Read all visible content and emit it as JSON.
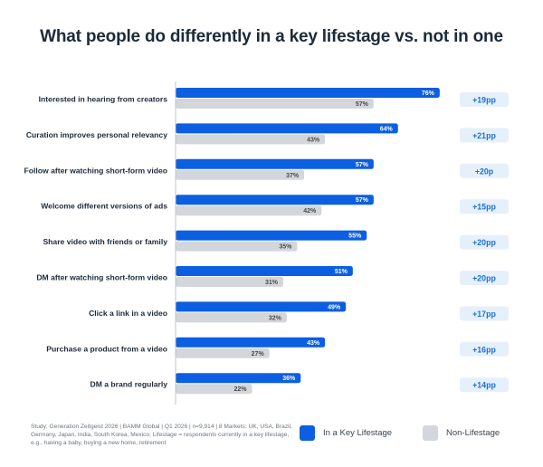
{
  "title": "What people do differently in a key lifestage vs. not in one",
  "colors": {
    "lifestage": "#0b5fe0",
    "non_lifestage": "#d3d6da",
    "diff_bg": "#e6f0fb",
    "diff_text": "#1c6fd1",
    "axis": "#bfc4c9"
  },
  "chart_data": {
    "type": "bar",
    "orientation": "horizontal",
    "title": "What people do differently in a key lifestage vs. not in one",
    "categories": [
      "Interested in hearing from creators",
      "Curation improves personal relevancy",
      "Follow after watching short-form video",
      "Welcome different versions of ads",
      "Share video with friends or family",
      "DM after watching short-form video",
      "Click a link in a video",
      "Purchase a product from a video",
      "DM a brand regularly"
    ],
    "series": [
      {
        "name": "In a Key Lifestage",
        "values": [
          76,
          64,
          57,
          57,
          55,
          51,
          49,
          43,
          36
        ]
      },
      {
        "name": "Non-Lifestage",
        "values": [
          57,
          43,
          37,
          42,
          35,
          31,
          32,
          27,
          22
        ]
      }
    ],
    "value_labels": {
      "lifestage": [
        "76%",
        "64%",
        "57%",
        "57%",
        "55%",
        "51%",
        "49%",
        "43%",
        "36%"
      ],
      "non_lifestage": [
        "57%",
        "43%",
        "37%",
        "42%",
        "35%",
        "31%",
        "32%",
        "27%",
        "22%"
      ]
    },
    "differences": [
      "+19pp",
      "+21pp",
      "+20p",
      "+15pp",
      "+20pp",
      "+20pp",
      "+17pp",
      "+16pp",
      "+14pp"
    ],
    "xlim": [
      0,
      100
    ],
    "xlabel": "",
    "ylabel": "",
    "legend_position": "bottom-right"
  },
  "legend": {
    "items": [
      {
        "label": "In a Key Lifestage"
      },
      {
        "label": "Non-Lifestage"
      }
    ]
  },
  "footnote": "Study: Generation Zeitgeist 2026 | BAMM Global | Q1 2026 | n=9,914 | 8 Markets: UK, USA, Brazil, Germany, Japan, India, South Korea, Mexico; Lifestage = respondents currently in a key lifestage, e.g., having a baby, buying a new home, retirement"
}
